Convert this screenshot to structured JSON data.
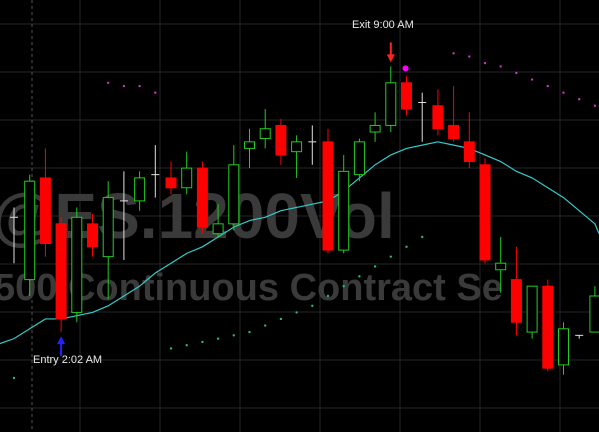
{
  "watermark": {
    "symbol": "@ES.1200Vol",
    "description": "500 Continuous Contract Se"
  },
  "annotations": {
    "entry_label": "Entry 2:02 AM",
    "exit_label": "Exit 9:00 AM",
    "entry_arrow_color": "#2222ff",
    "exit_arrow_color": "#ff2222",
    "exit_marker_color": "#ff00ff"
  },
  "colors": {
    "background": "#000000",
    "grid": "#262626",
    "up_candle": "#22cc22",
    "down_candle": "#ff0000",
    "ma_line": "#33cccc",
    "psar_above": "#cc33cc",
    "psar_below": "#22bb88"
  },
  "chart_data": {
    "type": "candlestick",
    "title": "",
    "ylim": [
      0,
      100
    ],
    "grid": true,
    "candles": [
      {
        "i": 0,
        "o": 49,
        "h": 52,
        "l": 35,
        "c": 49,
        "dir": "doji"
      },
      {
        "i": 1,
        "o": 30,
        "h": 62,
        "l": 25,
        "c": 60,
        "dir": "up"
      },
      {
        "i": 2,
        "o": 61,
        "h": 70,
        "l": 37,
        "c": 41,
        "dir": "down"
      },
      {
        "i": 3,
        "o": 47,
        "h": 49,
        "l": 14,
        "c": 18,
        "dir": "down"
      },
      {
        "i": 4,
        "o": 20,
        "h": 52,
        "l": 17,
        "c": 49,
        "dir": "up"
      },
      {
        "i": 5,
        "o": 47,
        "h": 50,
        "l": 37,
        "c": 40,
        "dir": "down"
      },
      {
        "i": 6,
        "o": 37,
        "h": 60,
        "l": 24,
        "c": 55,
        "dir": "up"
      },
      {
        "i": 7,
        "o": 54,
        "h": 63,
        "l": 36,
        "c": 54,
        "dir": "doji"
      },
      {
        "i": 8,
        "o": 54,
        "h": 63,
        "l": 51,
        "c": 61,
        "dir": "up"
      },
      {
        "i": 9,
        "o": 62,
        "h": 71,
        "l": 55,
        "c": 62,
        "dir": "doji"
      },
      {
        "i": 10,
        "o": 61,
        "h": 66,
        "l": 56,
        "c": 58,
        "dir": "down"
      },
      {
        "i": 11,
        "o": 58,
        "h": 69,
        "l": 56,
        "c": 64,
        "dir": "up"
      },
      {
        "i": 12,
        "o": 64,
        "h": 66,
        "l": 44,
        "c": 46,
        "dir": "down"
      },
      {
        "i": 13,
        "o": 44,
        "h": 53,
        "l": 43,
        "c": 47,
        "dir": "up"
      },
      {
        "i": 14,
        "o": 47,
        "h": 71,
        "l": 45,
        "c": 65,
        "dir": "up"
      },
      {
        "i": 15,
        "o": 70,
        "h": 76,
        "l": 64,
        "c": 72,
        "dir": "up"
      },
      {
        "i": 16,
        "o": 73,
        "h": 82,
        "l": 70,
        "c": 76,
        "dir": "up"
      },
      {
        "i": 17,
        "o": 77,
        "h": 79,
        "l": 65,
        "c": 68,
        "dir": "down"
      },
      {
        "i": 18,
        "o": 69,
        "h": 74,
        "l": 61,
        "c": 72,
        "dir": "up"
      },
      {
        "i": 19,
        "o": 72,
        "h": 77,
        "l": 65,
        "c": 72,
        "dir": "doji"
      },
      {
        "i": 20,
        "o": 72,
        "h": 76,
        "l": 38,
        "c": 39,
        "dir": "down"
      },
      {
        "i": 21,
        "o": 39,
        "h": 68,
        "l": 38,
        "c": 63,
        "dir": "up"
      },
      {
        "i": 22,
        "o": 62,
        "h": 73,
        "l": 60,
        "c": 72,
        "dir": "up"
      },
      {
        "i": 23,
        "o": 75,
        "h": 81,
        "l": 72,
        "c": 77,
        "dir": "up"
      },
      {
        "i": 24,
        "o": 77,
        "h": 95,
        "l": 75,
        "c": 90,
        "dir": "up"
      },
      {
        "i": 25,
        "o": 90,
        "h": 92,
        "l": 80,
        "c": 82,
        "dir": "down"
      },
      {
        "i": 26,
        "o": 84,
        "h": 87,
        "l": 72,
        "c": 84,
        "dir": "doji"
      },
      {
        "i": 27,
        "o": 83,
        "h": 88,
        "l": 74,
        "c": 76,
        "dir": "down"
      },
      {
        "i": 28,
        "o": 77,
        "h": 89,
        "l": 72,
        "c": 73,
        "dir": "down"
      },
      {
        "i": 29,
        "o": 72,
        "h": 81,
        "l": 64,
        "c": 66,
        "dir": "down"
      },
      {
        "i": 30,
        "o": 65,
        "h": 67,
        "l": 35,
        "c": 36,
        "dir": "down"
      },
      {
        "i": 31,
        "o": 33,
        "h": 43,
        "l": 26,
        "c": 35,
        "dir": "up"
      },
      {
        "i": 32,
        "o": 30,
        "h": 40,
        "l": 13,
        "c": 17,
        "dir": "down"
      },
      {
        "i": 33,
        "o": 14,
        "h": 28,
        "l": 12,
        "c": 28,
        "dir": "up"
      },
      {
        "i": 34,
        "o": 28,
        "h": 30,
        "l": 2,
        "c": 3,
        "dir": "down"
      },
      {
        "i": 35,
        "o": 4,
        "h": 17,
        "l": 1,
        "c": 15,
        "dir": "up"
      },
      {
        "i": 36,
        "o": 13,
        "h": 13,
        "l": 12,
        "c": 13,
        "dir": "doji"
      },
      {
        "i": 37,
        "o": 14,
        "h": 28,
        "l": 14,
        "c": 25,
        "dir": "up"
      }
    ],
    "moving_average": [
      12,
      15,
      18,
      18,
      19,
      20,
      22,
      25,
      28,
      32,
      35,
      38,
      40,
      43,
      46,
      48,
      49,
      51,
      52,
      53,
      54,
      57,
      61,
      65,
      68,
      70,
      71,
      72,
      71,
      70,
      68,
      66,
      63,
      61,
      58,
      55,
      51,
      47
    ],
    "psar_above": [
      {
        "i": 6,
        "v": 90
      },
      {
        "i": 7,
        "v": 89
      },
      {
        "i": 8,
        "v": 89
      },
      {
        "i": 9,
        "v": 87
      },
      {
        "i": 28,
        "v": 99
      },
      {
        "i": 29,
        "v": 98
      },
      {
        "i": 30,
        "v": 96
      },
      {
        "i": 31,
        "v": 95
      },
      {
        "i": 32,
        "v": 93
      },
      {
        "i": 33,
        "v": 91
      },
      {
        "i": 34,
        "v": 89
      },
      {
        "i": 35,
        "v": 87
      },
      {
        "i": 36,
        "v": 85
      },
      {
        "i": 37,
        "v": 83
      }
    ],
    "psar_below": [
      {
        "i": 0,
        "v": 0
      },
      {
        "i": 10,
        "v": 9
      },
      {
        "i": 11,
        "v": 10
      },
      {
        "i": 12,
        "v": 11
      },
      {
        "i": 13,
        "v": 12
      },
      {
        "i": 14,
        "v": 13
      },
      {
        "i": 15,
        "v": 14
      },
      {
        "i": 16,
        "v": 16
      },
      {
        "i": 17,
        "v": 18
      },
      {
        "i": 18,
        "v": 20
      },
      {
        "i": 19,
        "v": 22
      },
      {
        "i": 20,
        "v": 25
      },
      {
        "i": 21,
        "v": 28
      },
      {
        "i": 22,
        "v": 31
      },
      {
        "i": 23,
        "v": 34
      },
      {
        "i": 24,
        "v": 37
      },
      {
        "i": 25,
        "v": 40
      },
      {
        "i": 26,
        "v": 43
      }
    ],
    "entry_index": 3,
    "exit_index": 24
  }
}
